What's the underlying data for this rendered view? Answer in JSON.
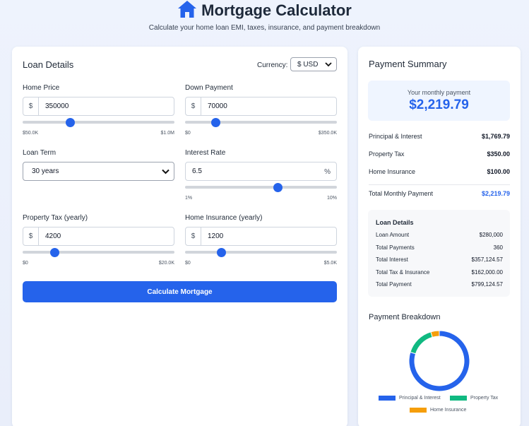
{
  "header": {
    "icon": "home-icon",
    "title": "Mortgage Calculator",
    "subtitle": "Calculate your home loan EMI, taxes, insurance, and payment breakdown"
  },
  "loan_details": {
    "title": "Loan Details",
    "currency_label": "Currency:",
    "currency_value": "$ USD",
    "home_price": {
      "label": "Home Price",
      "prefix": "$",
      "value": "350000",
      "min_label": "$50.0K",
      "max_label": "$1.0M",
      "slider_fraction": 0.316
    },
    "down_payment": {
      "label": "Down Payment",
      "prefix": "$",
      "value": "70000",
      "min_label": "$0",
      "max_label": "$350.0K",
      "slider_fraction": 0.2
    },
    "loan_term": {
      "label": "Loan Term",
      "value": "30 years"
    },
    "interest_rate": {
      "label": "Interest Rate",
      "value": "6.5",
      "suffix": "%",
      "min_label": "1%",
      "max_label": "10%",
      "slider_fraction": 0.611
    },
    "property_tax": {
      "label": "Property Tax (yearly)",
      "prefix": "$",
      "value": "4200",
      "min_label": "$0",
      "max_label": "$20.0K",
      "slider_fraction": 0.21
    },
    "home_insurance": {
      "label": "Home Insurance (yearly)",
      "prefix": "$",
      "value": "1200",
      "min_label": "$0",
      "max_label": "$5.0K",
      "slider_fraction": 0.24
    },
    "calculate_label": "Calculate Mortgage"
  },
  "summary": {
    "title": "Payment Summary",
    "monthly_label": "Your monthly payment",
    "monthly_value": "$2,219.79",
    "rows": [
      {
        "label": "Principal & Interest",
        "value": "$1,769.79"
      },
      {
        "label": "Property Tax",
        "value": "$350.00"
      },
      {
        "label": "Home Insurance",
        "value": "$100.00"
      }
    ],
    "total_label": "Total Monthly Payment",
    "total_value": "$2,219.79",
    "details": {
      "title": "Loan Details",
      "rows": [
        {
          "label": "Loan Amount",
          "value": "$280,000"
        },
        {
          "label": "Total Payments",
          "value": "360"
        },
        {
          "label": "Total Interest",
          "value": "$357,124.57"
        },
        {
          "label": "Total Tax & Insurance",
          "value": "$162,000.00"
        },
        {
          "label": "Total Payment",
          "value": "$799,124.57"
        }
      ]
    }
  },
  "breakdown": {
    "title": "Payment Breakdown",
    "colors": {
      "principal": "#2563eb",
      "tax": "#10b981",
      "insurance": "#f59e0b"
    },
    "legend": [
      "Principal & Interest",
      "Property Tax",
      "Home Insurance"
    ]
  },
  "chart_data": {
    "type": "pie",
    "categories": [
      "Principal & Interest",
      "Property Tax",
      "Home Insurance"
    ],
    "values": [
      1769.79,
      350.0,
      100.0
    ],
    "title": "Payment Breakdown",
    "legend_position": "bottom"
  }
}
